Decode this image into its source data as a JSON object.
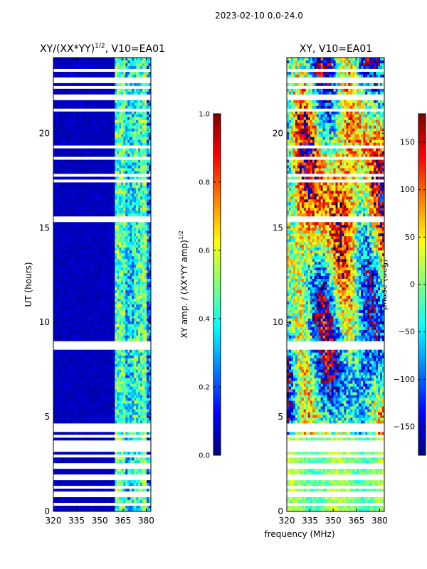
{
  "figure": {
    "suptitle": "2023-02-10 0.0-24.0"
  },
  "colors": {
    "background": "#ffffff",
    "mask": "#ffffff",
    "jet_low": "#00007f",
    "jet_high": "#7f0000"
  },
  "chart_data": [
    {
      "type": "heatmap",
      "title": "XY/(XX*YY)",
      "title_exponent": "1/2",
      "title_suffix": ", V10=EA01",
      "xlabel": "",
      "ylabel": "UT (hours)",
      "xlim": [
        320,
        383
      ],
      "ylim": [
        0,
        24
      ],
      "x_ticks": [
        320,
        335,
        350,
        365,
        380
      ],
      "y_ticks": [
        0,
        5,
        10,
        15,
        20
      ],
      "value_range": [
        0.0,
        1.0
      ],
      "colormap": "jet",
      "colorbar": {
        "label": "XY amp. / (XX*YY amp)",
        "label_exponent": "1/2",
        "ticks": [
          "0.0",
          "0.2",
          "0.4",
          "0.6",
          "0.8",
          "1.0"
        ],
        "range": [
          0.0,
          1.0
        ]
      },
      "bands": [
        {
          "from": 320,
          "to": 360,
          "typical": 0.06
        },
        {
          "from": 360,
          "to": 366,
          "typical": 0.45
        },
        {
          "from": 366,
          "to": 372,
          "typical": 0.35
        },
        {
          "from": 372,
          "to": 377,
          "typical": 0.42
        },
        {
          "from": 377,
          "to": 380,
          "typical": 0.5
        },
        {
          "from": 380,
          "to": 383,
          "typical": 0.25
        }
      ],
      "masked_hours": [
        0.4,
        0.9,
        1.3,
        1.8,
        2.4,
        2.9,
        3.3,
        3.6,
        4.0,
        4.3,
        4.5,
        8.7,
        8.9,
        15.4,
        15.5,
        17.5,
        17.8,
        18.7,
        19.3,
        21.2,
        21.9,
        22.4,
        22.8,
        23.3
      ]
    },
    {
      "type": "heatmap",
      "title": "XY, V10=EA01",
      "xlabel": "frequency (MHz)",
      "ylabel": "",
      "xlim": [
        320,
        383
      ],
      "ylim": [
        0,
        24
      ],
      "x_ticks": [
        320,
        335,
        350,
        365,
        380
      ],
      "y_ticks": [
        0,
        5,
        10,
        15,
        20
      ],
      "value_range": [
        -180,
        180
      ],
      "colormap": "jet",
      "colorbar": {
        "label": "phase (deg)",
        "ticks": [
          "−150",
          "−100",
          "−50",
          "0",
          "50",
          "100",
          "150"
        ],
        "tick_values": [
          -150,
          -100,
          -50,
          0,
          50,
          100,
          150
        ],
        "range": [
          -180,
          180
        ]
      },
      "masked_hours": [
        0.4,
        0.9,
        1.3,
        1.8,
        2.4,
        2.9,
        3.3,
        3.6,
        4.0,
        4.3,
        4.5,
        8.7,
        8.9,
        15.4,
        15.5,
        17.5,
        17.8,
        18.7,
        19.3,
        21.2,
        21.9,
        22.4,
        22.8,
        23.3
      ]
    }
  ]
}
